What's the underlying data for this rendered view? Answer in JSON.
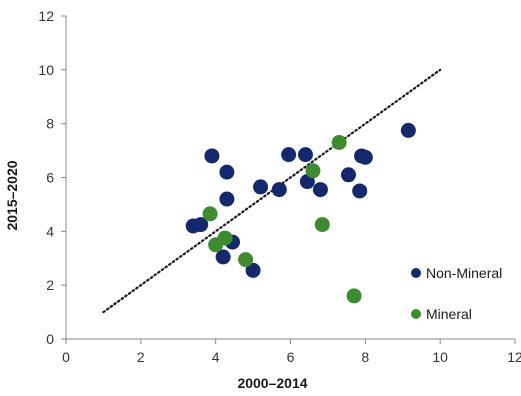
{
  "chart_data": {
    "type": "scatter",
    "title": "",
    "xlabel": "2000–2014",
    "ylabel": "2015–2020",
    "xlim": [
      0,
      12
    ],
    "ylim": [
      0,
      12
    ],
    "x_ticks": [
      0,
      2,
      4,
      6,
      8,
      10,
      12
    ],
    "y_ticks": [
      0,
      2,
      4,
      6,
      8,
      10,
      12
    ],
    "grid": false,
    "legend_position": "bottom-right",
    "reference_line": {
      "style": "dotted",
      "color": "#1a1a1a",
      "from": [
        1,
        1
      ],
      "to": [
        10,
        10
      ]
    },
    "series": [
      {
        "name": "Non-Mineral",
        "color": "#14286e",
        "points": [
          [
            3.4,
            4.2
          ],
          [
            3.6,
            4.25
          ],
          [
            3.9,
            6.8
          ],
          [
            4.3,
            6.2
          ],
          [
            4.3,
            5.2
          ],
          [
            4.45,
            3.6
          ],
          [
            4.2,
            3.05
          ],
          [
            5.0,
            2.55
          ],
          [
            5.2,
            5.65
          ],
          [
            5.7,
            5.55
          ],
          [
            5.95,
            6.85
          ],
          [
            6.4,
            6.85
          ],
          [
            6.45,
            5.85
          ],
          [
            6.8,
            5.55
          ],
          [
            7.55,
            6.1
          ],
          [
            7.85,
            5.5
          ],
          [
            7.9,
            6.8
          ],
          [
            8.0,
            6.75
          ],
          [
            9.15,
            7.75
          ]
        ]
      },
      {
        "name": "Mineral",
        "color": "#3d8b2f",
        "points": [
          [
            3.85,
            4.65
          ],
          [
            4.0,
            3.5
          ],
          [
            4.25,
            3.75
          ],
          [
            4.8,
            2.95
          ],
          [
            6.6,
            6.25
          ],
          [
            6.85,
            4.25
          ],
          [
            7.3,
            7.3
          ],
          [
            7.7,
            1.6
          ]
        ]
      }
    ]
  }
}
